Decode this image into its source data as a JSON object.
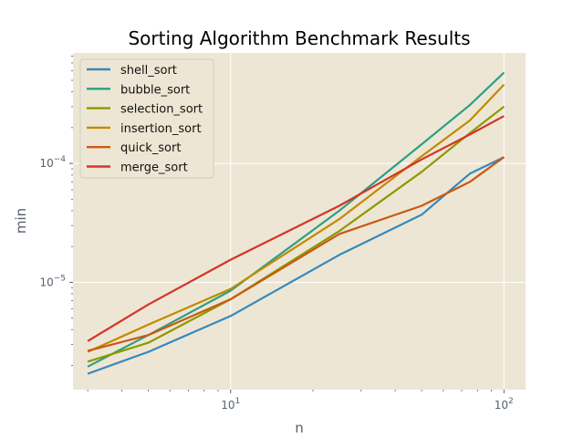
{
  "chart_data": {
    "type": "line",
    "title": "Sorting Algorithm Benchmark Results",
    "xlabel": "n",
    "ylabel": "min",
    "xscale": "log",
    "yscale": "log",
    "xlim": [
      2.65,
      120
    ],
    "ylim": [
      1.25e-06,
      0.00085
    ],
    "x_ticks": [
      {
        "value": 10,
        "base": "10",
        "exp": "1"
      },
      {
        "value": 100,
        "base": "10",
        "exp": "2"
      }
    ],
    "y_ticks": [
      {
        "value": 1e-05,
        "base": "10",
        "exp": "−5"
      },
      {
        "value": 0.0001,
        "base": "10",
        "exp": "−4"
      }
    ],
    "grid": true,
    "legend_position": "upper-left",
    "x": [
      3,
      5,
      10,
      25,
      50,
      75,
      100
    ],
    "series": [
      {
        "name": "shell_sort",
        "color": "#348abd",
        "values": [
          1.7e-06,
          2.6e-06,
          5.2e-06,
          1.7e-05,
          3.7e-05,
          8.2e-05,
          0.000113
        ]
      },
      {
        "name": "bubble_sort",
        "color": "#2ca085",
        "values": [
          1.95e-06,
          3.6e-06,
          8.5e-06,
          4e-05,
          0.000145,
          0.00031,
          0.00058
        ]
      },
      {
        "name": "selection_sort",
        "color": "#8c9a00",
        "values": [
          2.15e-06,
          3.1e-06,
          7.2e-06,
          2.7e-05,
          8.5e-05,
          0.00018,
          0.0003
        ]
      },
      {
        "name": "insertion_sort",
        "color": "#c08b00",
        "values": [
          2.6e-06,
          4.4e-06,
          8.8e-06,
          3.4e-05,
          0.000115,
          0.00023,
          0.00046
        ]
      },
      {
        "name": "quick_sort",
        "color": "#c85a14",
        "values": [
          2.65e-06,
          3.6e-06,
          7.2e-06,
          2.55e-05,
          4.4e-05,
          7e-05,
          0.000113
        ]
      },
      {
        "name": "merge_sort",
        "color": "#d43428",
        "values": [
          3.2e-06,
          6.5e-06,
          1.55e-05,
          4.4e-05,
          0.000108,
          0.000175,
          0.00025
        ]
      }
    ]
  },
  "colors": {
    "plot_background": "#eee6d4",
    "grid": "#ffffff",
    "tick_text": "#555f6b"
  }
}
